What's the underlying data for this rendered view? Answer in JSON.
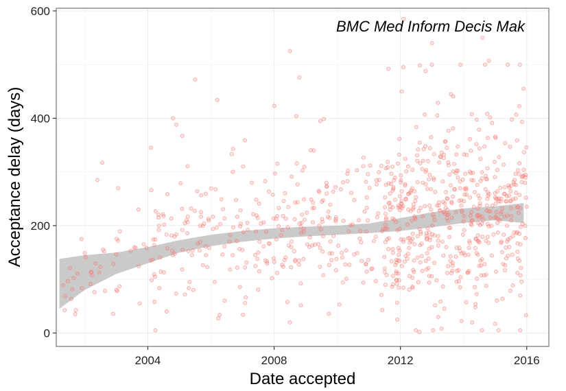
{
  "chart_data": {
    "type": "scatter",
    "title": "",
    "annotation": "BMC Med Inform Decis Mak",
    "xlabel": "Date accepted",
    "ylabel": "Acceptance delay (days)",
    "xlim": [
      2001.1,
      2016.7
    ],
    "ylim": [
      -25,
      605
    ],
    "x_ticks": [
      2004,
      2008,
      2012,
      2016
    ],
    "x_tick_labels": [
      "2004",
      "2008",
      "2012",
      "2016"
    ],
    "y_ticks": [
      0,
      200,
      400,
      600
    ],
    "y_tick_labels": [
      "0",
      "200",
      "400",
      "600"
    ],
    "grid": true,
    "point_color": "#f8766d",
    "band_color": "#bdbdbd",
    "smooth": {
      "x": [
        2001.2,
        2002,
        2003,
        2004,
        2005,
        2006,
        2007,
        2008,
        2009,
        2010,
        2011,
        2012,
        2013,
        2014,
        2015,
        2015.9
      ],
      "lower": [
        45,
        80,
        110,
        130,
        150,
        162,
        170,
        176,
        180,
        183,
        186,
        190,
        197,
        205,
        210,
        205
      ],
      "upper": [
        138,
        145,
        150,
        160,
        173,
        183,
        190,
        195,
        198,
        200,
        204,
        214,
        225,
        232,
        236,
        242
      ]
    },
    "notable_points": [
      {
        "x": 2008.5,
        "y": 525
      },
      {
        "x": 2008.8,
        "y": 476
      },
      {
        "x": 2005.5,
        "y": 472
      },
      {
        "x": 2006.2,
        "y": 434
      },
      {
        "x": 2008.0,
        "y": 423
      },
      {
        "x": 2008.7,
        "y": 404
      },
      {
        "x": 2004.8,
        "y": 400
      },
      {
        "x": 2004.9,
        "y": 388
      },
      {
        "x": 2006.7,
        "y": 343
      },
      {
        "x": 2002.4,
        "y": 285
      },
      {
        "x": 2012.1,
        "y": 585
      },
      {
        "x": 2013.0,
        "y": 540
      },
      {
        "x": 2014.6,
        "y": 550
      },
      {
        "x": 2014.8,
        "y": 507
      },
      {
        "x": 2015.4,
        "y": 500
      },
      {
        "x": 2015.9,
        "y": 455
      },
      {
        "x": 2012.8,
        "y": 488
      },
      {
        "x": 2013.6,
        "y": 445
      },
      {
        "x": 2008.5,
        "y": 20
      },
      {
        "x": 2012.6,
        "y": 2
      },
      {
        "x": 2013.3,
        "y": 8
      },
      {
        "x": 2015.0,
        "y": 17
      },
      {
        "x": 2001.7,
        "y": 35
      },
      {
        "x": 2001.9,
        "y": 175
      },
      {
        "x": 2011.9,
        "y": 25
      },
      {
        "x": 2013.2,
        "y": 30
      }
    ],
    "points_generated": {
      "count": 900,
      "note": "remaining points follow the smooth trend with spread; density increases after 2009"
    }
  }
}
